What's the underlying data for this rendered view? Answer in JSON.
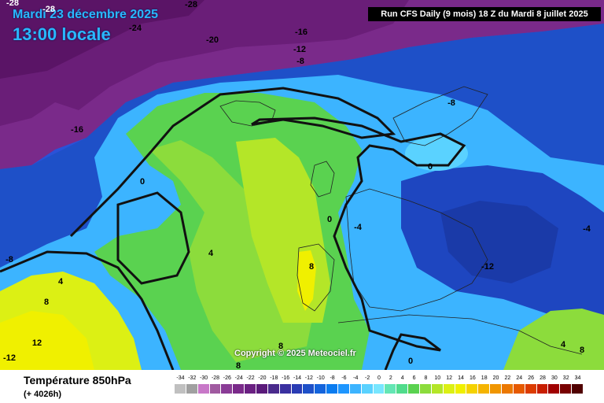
{
  "header": {
    "date": "Mardi 23 décembre 2025",
    "time": "13:00 locale",
    "run_info": "Run CFS Daily (9 mois) 18 Z du Mardi 8 juillet 2025"
  },
  "copyright": "Copyright © 2025 Meteociel.fr",
  "footer": {
    "variable": "Température 850hPa",
    "lead": "(+ 4026h)"
  },
  "legend": {
    "labels": [
      "-34",
      "-32",
      "-30",
      "-28",
      "-26",
      "-24",
      "-22",
      "-20",
      "-18",
      "-16",
      "-14",
      "-12",
      "-10",
      "-8",
      "-6",
      "-4",
      "-2",
      "0",
      "2",
      "4",
      "6",
      "8",
      "10",
      "12",
      "14",
      "16",
      "18",
      "20",
      "22",
      "24",
      "26",
      "28",
      "30",
      "32",
      "34"
    ],
    "colors": [
      "#c0c0c0",
      "#a0a0a0",
      "#c878c8",
      "#a05aa0",
      "#8a3c96",
      "#7a2a8a",
      "#6a2082",
      "#5a1a7a",
      "#4a2a8c",
      "#3a30a0",
      "#2a3cb4",
      "#1e50c8",
      "#1464dc",
      "#0a7cf0",
      "#1e96ff",
      "#3cb4ff",
      "#5ad2ff",
      "#78e6ff",
      "#64e6b4",
      "#50dc8c",
      "#5ad250",
      "#8cdc3c",
      "#b4e628",
      "#dcf014",
      "#f0f000",
      "#f5d200",
      "#f5b400",
      "#f09600",
      "#eb7800",
      "#e65a00",
      "#dc3c00",
      "#c81e00",
      "#a00000",
      "#780000",
      "#500000"
    ]
  },
  "map_labels": [
    {
      "text": "-28",
      "style": "light"
    },
    {
      "text": "-28",
      "style": "light"
    },
    {
      "text": "-24",
      "style": "dark"
    },
    {
      "text": "-20",
      "style": "dark"
    },
    {
      "text": "-16",
      "style": "dark"
    },
    {
      "text": "-12",
      "style": "dark"
    },
    {
      "text": "-8",
      "style": "dark"
    },
    {
      "text": "-28",
      "style": "dark"
    },
    {
      "text": "-16",
      "style": "dark"
    },
    {
      "text": "-8",
      "style": "dark"
    },
    {
      "text": "0",
      "style": "dark"
    },
    {
      "text": "0",
      "style": "dark"
    },
    {
      "text": "0",
      "style": "dark"
    },
    {
      "text": "-4",
      "style": "dark"
    },
    {
      "text": "-4",
      "style": "dark"
    },
    {
      "text": "-12",
      "style": "dark"
    },
    {
      "text": "-8",
      "style": "dark"
    },
    {
      "text": "4",
      "style": "dark"
    },
    {
      "text": "4",
      "style": "dark"
    },
    {
      "text": "8",
      "style": "dark"
    },
    {
      "text": "8",
      "style": "dark"
    },
    {
      "text": "12",
      "style": "dark"
    },
    {
      "text": "-12",
      "style": "dark"
    },
    {
      "text": "8",
      "style": "dark"
    },
    {
      "text": "8",
      "style": "dark"
    },
    {
      "text": "0",
      "style": "dark"
    },
    {
      "text": "4",
      "style": "dark"
    },
    {
      "text": "8",
      "style": "dark"
    }
  ]
}
